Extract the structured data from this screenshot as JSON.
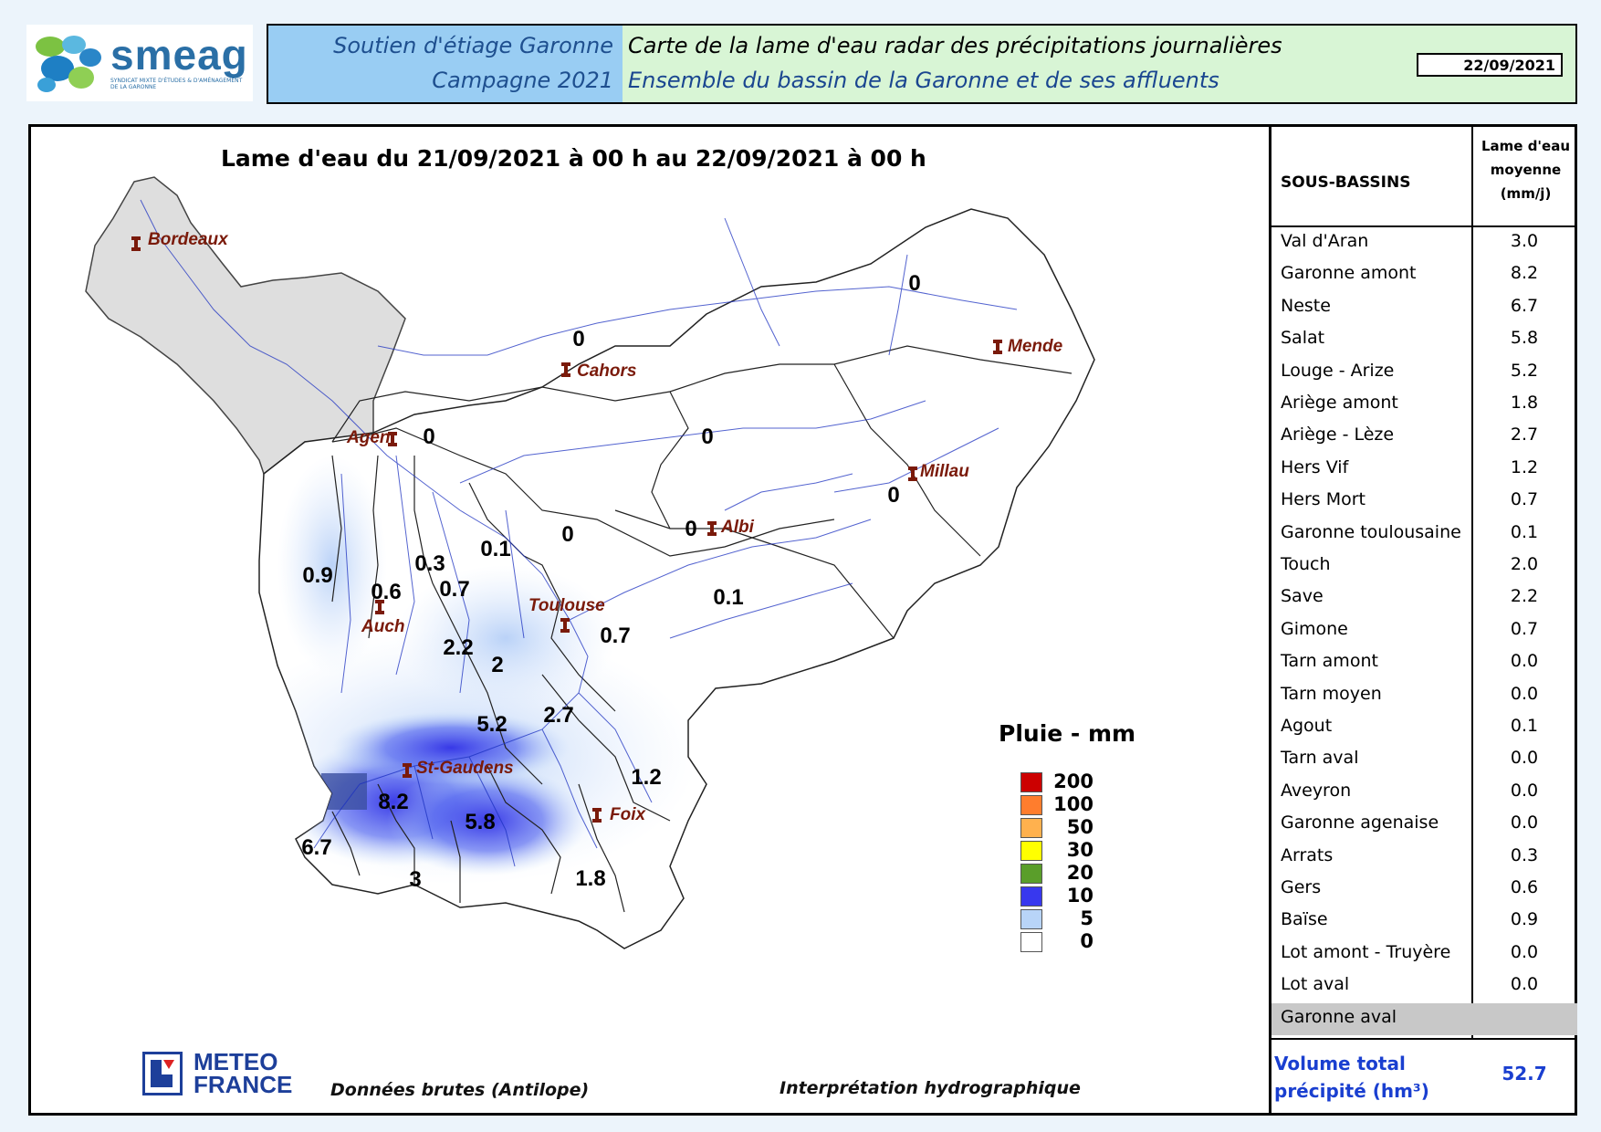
{
  "logo": {
    "brand": "smeag",
    "tagline": "SYNDICAT MIXTE D'ÉTUDES & D'AMÉNAGEMENT DE LA GARONNE"
  },
  "header": {
    "left_line1": "Soutien d'étiage Garonne",
    "left_line2": "Campagne 2021",
    "right_line1": "Carte de la lame d'eau radar des précipitations journalières",
    "right_line2": "Ensemble du bassin de la Garonne et de ses affluents",
    "date": "22/09/2021"
  },
  "map": {
    "title": "Lame d'eau du 21/09/2021 à 00 h au 22/09/2021 à 00 h",
    "cities": [
      {
        "name": "Bordeaux"
      },
      {
        "name": "Cahors"
      },
      {
        "name": "Mende"
      },
      {
        "name": "Agen"
      },
      {
        "name": "Millau"
      },
      {
        "name": "Albi"
      },
      {
        "name": "Toulouse"
      },
      {
        "name": "Auch"
      },
      {
        "name": "St-Gaudens"
      },
      {
        "name": "Foix"
      }
    ],
    "values": [
      "0",
      "0",
      "0",
      "0",
      "0",
      "0",
      "0",
      "0.1",
      "0.9",
      "0.3",
      "0.6",
      "0.7",
      "0.1",
      "0.7",
      "2.2",
      "2",
      "2.7",
      "5.2",
      "1.2",
      "8.2",
      "5.8",
      "6.7",
      "3",
      "1.8"
    ],
    "legend": {
      "title": "Pluie - mm",
      "items": [
        {
          "label": "200",
          "color": "#cc0000"
        },
        {
          "label": "100",
          "color": "#ff7d2d"
        },
        {
          "label": "50",
          "color": "#ffb14e"
        },
        {
          "label": "30",
          "color": "#ffff00"
        },
        {
          "label": "20",
          "color": "#5a9e2a"
        },
        {
          "label": "10",
          "color": "#3838ee"
        },
        {
          "label": "5",
          "color": "#b8d4f8"
        },
        {
          "label": "0",
          "color": "#ffffff"
        }
      ]
    },
    "credit_line1": "METEO",
    "credit_line2": "FRANCE",
    "note_left": "Données brutes (Antilope)",
    "note_right": "Interprétation hydrographique"
  },
  "table": {
    "header_name": "SOUS-BASSINS",
    "header_value_l1": "Lame d'eau",
    "header_value_l2": "moyenne",
    "header_value_l3": "(mm/j)",
    "rows": [
      {
        "name": "Val d'Aran",
        "value": "3.0"
      },
      {
        "name": "Garonne amont",
        "value": "8.2"
      },
      {
        "name": "Neste",
        "value": "6.7"
      },
      {
        "name": "Salat",
        "value": "5.8"
      },
      {
        "name": "Louge - Arize",
        "value": "5.2"
      },
      {
        "name": "Ariège amont",
        "value": "1.8"
      },
      {
        "name": "Ariège - Lèze",
        "value": "2.7"
      },
      {
        "name": "Hers Vif",
        "value": "1.2"
      },
      {
        "name": "Hers Mort",
        "value": "0.7"
      },
      {
        "name": "Garonne toulousaine",
        "value": "0.1"
      },
      {
        "name": "Touch",
        "value": "2.0"
      },
      {
        "name": "Save",
        "value": "2.2"
      },
      {
        "name": "Gimone",
        "value": "0.7"
      },
      {
        "name": "Tarn amont",
        "value": "0.0"
      },
      {
        "name": "Tarn moyen",
        "value": "0.0"
      },
      {
        "name": "Agout",
        "value": "0.1"
      },
      {
        "name": "Tarn aval",
        "value": "0.0"
      },
      {
        "name": "Aveyron",
        "value": "0.0"
      },
      {
        "name": "Garonne agenaise",
        "value": "0.0"
      },
      {
        "name": "Arrats",
        "value": "0.3"
      },
      {
        "name": "Gers",
        "value": "0.6"
      },
      {
        "name": "Baïse",
        "value": "0.9"
      },
      {
        "name": "Lot amont - Truyère",
        "value": "0.0"
      },
      {
        "name": "Lot aval",
        "value": "0.0"
      },
      {
        "name": "Garonne aval",
        "value": ""
      }
    ],
    "volume_label_l1": "Volume total",
    "volume_label_l2": "précipité (hm³)",
    "volume_value": "52.7"
  }
}
